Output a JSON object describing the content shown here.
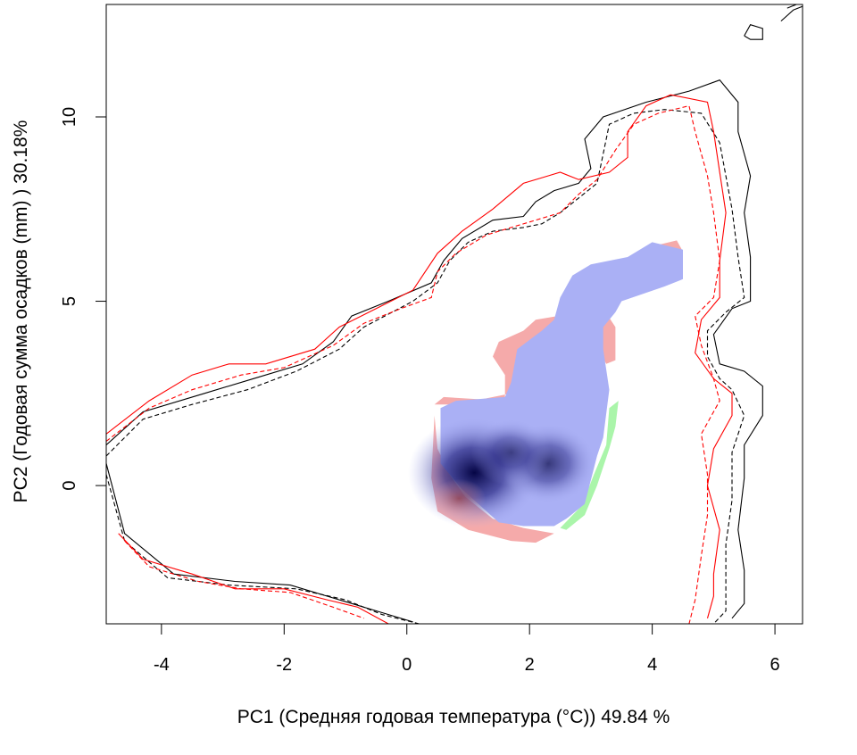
{
  "chart_data": {
    "type": "heatmap",
    "xlabel": "PC1 (Средняя годовая температура (°C)) 49.84 %",
    "ylabel": "PC2 (Годовая сумма осадков  (mm) ) 30.18%",
    "xlim": [
      -4.9,
      6.45
    ],
    "ylim": [
      -3.75,
      13.05
    ],
    "x_ticks": [
      -4,
      -2,
      0,
      2,
      4,
      6
    ],
    "y_ticks": [
      0,
      5,
      10
    ],
    "x_tick_labels": [
      "-4",
      "-2",
      "0",
      "2",
      "4",
      "6"
    ],
    "y_tick_labels": [
      "0",
      "5",
      "10"
    ],
    "grid": false,
    "legend": "none",
    "colors": {
      "contour_1": "#000000",
      "contour_2": "#ff0000",
      "overlap_fill": "#aab0f5",
      "density_peak": "#0a0a50",
      "fill_only_red": "#f5aaaa",
      "fill_only_green": "#aaf5aa"
    },
    "density_peaks": [
      {
        "x": 1.1,
        "y": 0.35,
        "weight": 1.0
      },
      {
        "x": 2.3,
        "y": 0.6,
        "weight": 0.55
      },
      {
        "x": 1.7,
        "y": 0.9,
        "weight": 0.35
      }
    ],
    "overlap_region": [
      [
        0.55,
        2.1
      ],
      [
        0.8,
        2.3
      ],
      [
        1.6,
        2.4
      ],
      [
        1.7,
        2.8
      ],
      [
        1.8,
        3.7
      ],
      [
        2.2,
        4.2
      ],
      [
        2.4,
        4.5
      ],
      [
        2.5,
        5.1
      ],
      [
        2.7,
        5.7
      ],
      [
        3.0,
        6.0
      ],
      [
        3.6,
        6.2
      ],
      [
        4.0,
        6.6
      ],
      [
        4.5,
        6.4
      ],
      [
        4.5,
        5.6
      ],
      [
        4.2,
        5.4
      ],
      [
        3.5,
        5.0
      ],
      [
        3.4,
        4.7
      ],
      [
        3.2,
        4.3
      ],
      [
        3.2,
        3.7
      ],
      [
        3.3,
        2.6
      ],
      [
        3.2,
        1.3
      ],
      [
        3.1,
        0.8
      ],
      [
        2.9,
        -0.5
      ],
      [
        2.6,
        -0.9
      ],
      [
        2.4,
        -1.1
      ],
      [
        1.9,
        -1.1
      ],
      [
        1.5,
        -1.0
      ],
      [
        0.9,
        -0.1
      ],
      [
        0.55,
        0.6
      ]
    ],
    "extension_red_only": [
      [
        0.45,
        2.2
      ],
      [
        0.6,
        2.4
      ],
      [
        1.6,
        2.3
      ],
      [
        1.6,
        3.0
      ],
      [
        1.4,
        3.5
      ],
      [
        1.5,
        3.9
      ],
      [
        1.9,
        4.2
      ],
      [
        2.1,
        4.5
      ],
      [
        3.2,
        4.8
      ],
      [
        3.4,
        4.3
      ],
      [
        3.4,
        3.4
      ],
      [
        3.25,
        3.3
      ],
      [
        3.15,
        3.6
      ],
      [
        3.0,
        4.2
      ],
      [
        2.4,
        4.3
      ],
      [
        2.2,
        3.8
      ],
      [
        1.8,
        3.5
      ],
      [
        1.7,
        2.5
      ],
      [
        0.8,
        2.2
      ]
    ],
    "extension_red_bottom": [
      [
        0.45,
        1.9
      ],
      [
        0.4,
        0.2
      ],
      [
        0.5,
        -0.7
      ],
      [
        1.0,
        -1.2
      ],
      [
        1.7,
        -1.5
      ],
      [
        2.1,
        -1.55
      ],
      [
        2.4,
        -1.3
      ],
      [
        1.9,
        -1.15
      ],
      [
        1.4,
        -0.9
      ],
      [
        0.95,
        -0.3
      ],
      [
        0.7,
        0.3
      ],
      [
        0.5,
        1.0
      ]
    ],
    "extension_red_top": [
      [
        3.9,
        6.45
      ],
      [
        4.4,
        6.65
      ],
      [
        4.5,
        6.35
      ],
      [
        4.2,
        6.45
      ]
    ],
    "extension_green": [
      [
        3.3,
        2.1
      ],
      [
        3.45,
        2.3
      ],
      [
        3.4,
        1.6
      ],
      [
        3.3,
        1.0
      ],
      [
        3.1,
        0.0
      ],
      [
        2.9,
        -0.8
      ],
      [
        2.6,
        -1.2
      ],
      [
        2.5,
        -1.15
      ],
      [
        2.85,
        -0.55
      ],
      [
        3.05,
        0.3
      ],
      [
        3.25,
        1.1
      ]
    ],
    "extension_green_top": [
      [
        3.55,
        6.05
      ],
      [
        3.8,
        6.15
      ],
      [
        3.85,
        6.05
      ],
      [
        3.6,
        5.95
      ]
    ],
    "contours": [
      {
        "style": "solid",
        "color": "#000000",
        "points": [
          [
            -4.9,
            1.1
          ],
          [
            -4.3,
            2.0
          ],
          [
            -3.3,
            2.5
          ],
          [
            -2.5,
            2.9
          ],
          [
            -1.7,
            3.3
          ],
          [
            -1.2,
            3.9
          ],
          [
            -0.9,
            4.6
          ],
          [
            -0.3,
            5.0
          ],
          [
            0.4,
            5.5
          ],
          [
            0.6,
            6.1
          ],
          [
            0.9,
            6.7
          ],
          [
            1.4,
            7.2
          ],
          [
            1.9,
            7.3
          ],
          [
            2.1,
            7.7
          ],
          [
            2.4,
            8.0
          ],
          [
            2.8,
            8.2
          ],
          [
            3.0,
            8.6
          ],
          [
            2.9,
            9.4
          ],
          [
            3.2,
            10.0
          ],
          [
            3.9,
            10.4
          ],
          [
            4.6,
            10.7
          ],
          [
            5.1,
            11.0
          ],
          [
            5.4,
            10.4
          ],
          [
            5.4,
            9.6
          ],
          [
            5.6,
            8.4
          ],
          [
            5.5,
            7.4
          ],
          [
            5.6,
            6.2
          ],
          [
            5.6,
            5.0
          ],
          [
            5.3,
            4.8
          ],
          [
            5.0,
            4.1
          ],
          [
            5.1,
            3.3
          ],
          [
            5.5,
            3.1
          ],
          [
            5.8,
            2.7
          ],
          [
            5.8,
            1.9
          ],
          [
            5.5,
            1.1
          ],
          [
            5.5,
            0.2
          ],
          [
            5.4,
            -1.2
          ],
          [
            5.5,
            -2.3
          ],
          [
            5.5,
            -3.2
          ],
          [
            5.3,
            -3.6
          ]
        ]
      },
      {
        "style": "dashed",
        "color": "#000000",
        "points": [
          [
            -4.9,
            0.8
          ],
          [
            -4.3,
            1.8
          ],
          [
            -3.5,
            2.2
          ],
          [
            -2.6,
            2.6
          ],
          [
            -1.8,
            3.1
          ],
          [
            -1.1,
            3.7
          ],
          [
            -0.7,
            4.3
          ],
          [
            0.1,
            5.0
          ],
          [
            0.5,
            5.5
          ],
          [
            0.7,
            6.1
          ],
          [
            1.0,
            6.6
          ],
          [
            1.4,
            6.9
          ],
          [
            1.9,
            7.0
          ],
          [
            2.2,
            7.1
          ],
          [
            2.5,
            7.4
          ],
          [
            2.8,
            7.8
          ],
          [
            3.1,
            8.2
          ],
          [
            3.2,
            9.0
          ],
          [
            3.3,
            9.8
          ],
          [
            3.7,
            10.1
          ],
          [
            4.2,
            10.2
          ],
          [
            4.8,
            10.1
          ],
          [
            5.1,
            9.3
          ],
          [
            5.2,
            8.4
          ],
          [
            5.3,
            7.5
          ],
          [
            5.4,
            6.2
          ],
          [
            5.5,
            5.1
          ],
          [
            5.2,
            4.7
          ],
          [
            4.9,
            4.2
          ],
          [
            4.9,
            3.5
          ],
          [
            5.1,
            2.9
          ],
          [
            5.3,
            2.6
          ],
          [
            5.5,
            1.9
          ],
          [
            5.3,
            0.9
          ],
          [
            5.3,
            -0.4
          ],
          [
            5.2,
            -1.6
          ],
          [
            5.2,
            -2.7
          ],
          [
            5.2,
            -3.4
          ],
          [
            5.0,
            -3.75
          ]
        ]
      },
      {
        "style": "solid",
        "color": "#ff0000",
        "points": [
          [
            -4.9,
            1.4
          ],
          [
            -4.2,
            2.3
          ],
          [
            -3.5,
            3.0
          ],
          [
            -2.9,
            3.3
          ],
          [
            -2.3,
            3.3
          ],
          [
            -1.5,
            3.7
          ],
          [
            -1.1,
            4.3
          ],
          [
            -0.5,
            4.8
          ],
          [
            0.1,
            5.3
          ],
          [
            0.5,
            6.3
          ],
          [
            0.9,
            6.9
          ],
          [
            1.4,
            7.5
          ],
          [
            1.9,
            8.2
          ],
          [
            2.3,
            8.4
          ],
          [
            2.5,
            8.5
          ],
          [
            2.8,
            8.3
          ],
          [
            3.3,
            8.5
          ],
          [
            3.6,
            8.9
          ],
          [
            3.6,
            9.6
          ],
          [
            3.9,
            10.3
          ],
          [
            4.3,
            10.6
          ],
          [
            4.9,
            10.4
          ],
          [
            5.0,
            9.6
          ],
          [
            5.1,
            8.5
          ],
          [
            5.2,
            7.4
          ],
          [
            5.1,
            6.1
          ],
          [
            5.1,
            5.1
          ],
          [
            4.8,
            4.5
          ],
          [
            4.7,
            3.6
          ],
          [
            5.0,
            2.9
          ],
          [
            5.3,
            2.5
          ],
          [
            5.3,
            1.9
          ],
          [
            5.0,
            1.0
          ],
          [
            4.9,
            0.0
          ],
          [
            5.1,
            -1.2
          ],
          [
            5.0,
            -2.4
          ],
          [
            5.0,
            -3.0
          ],
          [
            4.9,
            -3.6
          ]
        ]
      },
      {
        "style": "dashed",
        "color": "#ff0000",
        "points": [
          [
            -4.9,
            1.2
          ],
          [
            -4.2,
            2.1
          ],
          [
            -3.5,
            2.6
          ],
          [
            -2.7,
            3.0
          ],
          [
            -2.0,
            3.2
          ],
          [
            -1.2,
            3.8
          ],
          [
            -0.7,
            4.4
          ],
          [
            -0.1,
            4.8
          ],
          [
            0.4,
            5.1
          ],
          [
            0.5,
            5.8
          ],
          [
            0.8,
            6.3
          ],
          [
            1.3,
            6.8
          ],
          [
            1.7,
            7.0
          ],
          [
            2.1,
            7.2
          ],
          [
            2.5,
            7.4
          ],
          [
            2.8,
            7.9
          ],
          [
            3.1,
            8.3
          ],
          [
            3.4,
            9.1
          ],
          [
            3.7,
            9.8
          ],
          [
            4.1,
            10.1
          ],
          [
            4.6,
            10.3
          ],
          [
            4.7,
            9.6
          ],
          [
            4.9,
            8.4
          ],
          [
            5.0,
            7.4
          ],
          [
            5.1,
            6.1
          ],
          [
            5.0,
            5.1
          ],
          [
            4.7,
            4.6
          ],
          [
            4.8,
            3.8
          ],
          [
            5.0,
            2.9
          ],
          [
            5.1,
            2.3
          ],
          [
            4.8,
            1.4
          ],
          [
            4.9,
            0.3
          ],
          [
            4.9,
            -0.8
          ],
          [
            4.8,
            -1.9
          ],
          [
            4.7,
            -3.1
          ],
          [
            4.6,
            -3.75
          ]
        ]
      },
      {
        "style": "solid",
        "color": "#000000",
        "points": [
          [
            -4.9,
            0.6
          ],
          [
            -4.6,
            -1.3
          ],
          [
            -3.8,
            -2.4
          ],
          [
            -2.8,
            -2.6
          ],
          [
            -1.9,
            -2.7
          ],
          [
            -1.1,
            -3.1
          ],
          [
            -0.5,
            -3.4
          ],
          [
            0.1,
            -3.7
          ]
        ]
      },
      {
        "style": "dashed",
        "color": "#000000",
        "points": [
          [
            -4.9,
            0.3
          ],
          [
            -4.6,
            -1.5
          ],
          [
            -3.9,
            -2.5
          ],
          [
            -2.9,
            -2.7
          ],
          [
            -1.8,
            -2.8
          ],
          [
            -1.0,
            -3.1
          ],
          [
            -0.4,
            -3.5
          ],
          [
            0.2,
            -3.75
          ]
        ]
      },
      {
        "style": "solid",
        "color": "#ff0000",
        "points": [
          [
            -4.7,
            -1.3
          ],
          [
            -4.3,
            -2.0
          ],
          [
            -3.5,
            -2.4
          ],
          [
            -2.8,
            -2.8
          ],
          [
            -2.0,
            -2.8
          ],
          [
            -1.3,
            -3.1
          ],
          [
            -0.8,
            -3.3
          ],
          [
            -0.3,
            -3.75
          ]
        ]
      },
      {
        "style": "dashed",
        "color": "#ff0000",
        "points": [
          [
            -4.6,
            -1.5
          ],
          [
            -4.2,
            -2.2
          ],
          [
            -3.4,
            -2.6
          ],
          [
            -2.7,
            -2.8
          ],
          [
            -1.9,
            -2.9
          ],
          [
            -1.2,
            -3.3
          ],
          [
            -0.7,
            -3.6
          ]
        ]
      },
      {
        "style": "solid",
        "color": "#000000",
        "points": [
          [
            5.5,
            12.2
          ],
          [
            5.6,
            12.5
          ],
          [
            5.8,
            12.4
          ],
          [
            5.8,
            12.1
          ],
          [
            5.6,
            12.1
          ],
          [
            5.5,
            12.2
          ]
        ]
      },
      {
        "style": "solid",
        "color": "#000000",
        "points": [
          [
            6.1,
            12.6
          ],
          [
            6.3,
            12.9
          ],
          [
            6.45,
            13.0
          ]
        ]
      },
      {
        "style": "solid",
        "color": "#000000",
        "points": [
          [
            6.2,
            12.95
          ],
          [
            6.35,
            13.05
          ]
        ]
      }
    ]
  }
}
